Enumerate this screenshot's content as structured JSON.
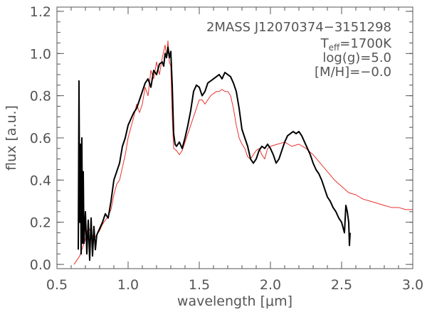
{
  "chart_data": {
    "type": "line",
    "title": "",
    "xlabel_main": "wavelength [",
    "xlabel_unit": "μm",
    "xlabel_end": "]",
    "ylabel": "flux [a.u.]",
    "xlim": [
      0.5,
      3.0
    ],
    "ylim": [
      -0.02,
      1.22
    ],
    "x_ticks": [
      0.5,
      1.0,
      1.5,
      2.0,
      2.5,
      3.0
    ],
    "x_tick_labels": [
      "0.5",
      "1.0",
      "1.5",
      "2.0",
      "2.5",
      "3.0"
    ],
    "y_ticks": [
      0.0,
      0.2,
      0.4,
      0.6,
      0.8,
      1.0,
      1.2
    ],
    "y_tick_labels": [
      "0.0",
      "0.2",
      "0.4",
      "0.6",
      "0.8",
      "1.0",
      "1.2"
    ],
    "grid": false,
    "annotations": {
      "object": "2MASS J12070374−3151298",
      "teff_prefix": "T",
      "teff_sub": "eff",
      "teff_value": "=1700K",
      "logg": "log(g)=5.0",
      "metallicity": "[M/H]=−0.0"
    },
    "series": [
      {
        "color": "#000000",
        "x": [
          0.65,
          0.655,
          0.66,
          0.665,
          0.67,
          0.675,
          0.68,
          0.685,
          0.69,
          0.7,
          0.71,
          0.72,
          0.73,
          0.74,
          0.75,
          0.76,
          0.77,
          0.78,
          0.8,
          0.82,
          0.84,
          0.86,
          0.88,
          0.9,
          0.92,
          0.94,
          0.96,
          0.98,
          1.0,
          1.02,
          1.04,
          1.06,
          1.08,
          1.1,
          1.12,
          1.14,
          1.16,
          1.18,
          1.2,
          1.22,
          1.24,
          1.25,
          1.26,
          1.27,
          1.28,
          1.29,
          1.3,
          1.31,
          1.32,
          1.33,
          1.34,
          1.36,
          1.38,
          1.4,
          1.42,
          1.44,
          1.46,
          1.48,
          1.5,
          1.52,
          1.54,
          1.56,
          1.58,
          1.6,
          1.62,
          1.64,
          1.66,
          1.68,
          1.7,
          1.72,
          1.74,
          1.76,
          1.78,
          1.8,
          1.82,
          1.84,
          1.86,
          1.88,
          1.9,
          1.92,
          1.94,
          1.96,
          1.98,
          2.0,
          2.02,
          2.04,
          2.06,
          2.08,
          2.1,
          2.12,
          2.14,
          2.16,
          2.18,
          2.2,
          2.22,
          2.24,
          2.26,
          2.28,
          2.3,
          2.32,
          2.34,
          2.36,
          2.38,
          2.4,
          2.42,
          2.44,
          2.46,
          2.48,
          2.5,
          2.52,
          2.53,
          2.54,
          2.55,
          2.555,
          2.56
        ],
        "y": [
          0.07,
          0.87,
          0.2,
          0.57,
          0.05,
          0.6,
          0.1,
          0.44,
          0.1,
          0.25,
          0.05,
          0.21,
          0.02,
          0.22,
          0.04,
          0.18,
          0.07,
          0.14,
          0.17,
          0.2,
          0.24,
          0.22,
          0.3,
          0.4,
          0.44,
          0.48,
          0.56,
          0.6,
          0.66,
          0.69,
          0.72,
          0.74,
          0.78,
          0.82,
          0.86,
          0.88,
          0.84,
          0.92,
          0.9,
          0.95,
          0.96,
          0.94,
          1.0,
          0.98,
          1.03,
          0.98,
          1.01,
          0.85,
          0.62,
          0.57,
          0.56,
          0.58,
          0.55,
          0.6,
          0.66,
          0.73,
          0.82,
          0.85,
          0.84,
          0.8,
          0.82,
          0.86,
          0.87,
          0.88,
          0.89,
          0.9,
          0.88,
          0.91,
          0.9,
          0.89,
          0.86,
          0.82,
          0.74,
          0.64,
          0.6,
          0.56,
          0.5,
          0.48,
          0.5,
          0.54,
          0.56,
          0.55,
          0.57,
          0.55,
          0.52,
          0.48,
          0.5,
          0.54,
          0.58,
          0.61,
          0.62,
          0.63,
          0.62,
          0.63,
          0.61,
          0.58,
          0.55,
          0.52,
          0.48,
          0.45,
          0.43,
          0.4,
          0.36,
          0.32,
          0.3,
          0.27,
          0.25,
          0.22,
          0.2,
          0.15,
          0.28,
          0.25,
          0.2,
          0.09,
          0.15
        ]
      },
      {
        "color": "#e8332d",
        "x": [
          0.62,
          0.66,
          0.7,
          0.72,
          0.74,
          0.76,
          0.78,
          0.8,
          0.82,
          0.84,
          0.86,
          0.88,
          0.9,
          0.92,
          0.94,
          0.96,
          0.98,
          1.0,
          1.02,
          1.04,
          1.06,
          1.08,
          1.1,
          1.12,
          1.14,
          1.16,
          1.18,
          1.2,
          1.22,
          1.24,
          1.26,
          1.27,
          1.28,
          1.29,
          1.3,
          1.31,
          1.32,
          1.34,
          1.36,
          1.38,
          1.4,
          1.42,
          1.44,
          1.46,
          1.48,
          1.5,
          1.52,
          1.54,
          1.56,
          1.58,
          1.6,
          1.62,
          1.64,
          1.66,
          1.68,
          1.7,
          1.72,
          1.74,
          1.76,
          1.78,
          1.8,
          1.82,
          1.84,
          1.86,
          1.88,
          1.9,
          1.92,
          1.94,
          1.96,
          1.98,
          2.0,
          2.05,
          2.1,
          2.15,
          2.2,
          2.25,
          2.3,
          2.35,
          2.4,
          2.45,
          2.5,
          2.55,
          2.6,
          2.65,
          2.7,
          2.75,
          2.8,
          2.85,
          2.9,
          2.95,
          3.0
        ],
        "y": [
          0.0,
          0.04,
          0.12,
          0.18,
          0.15,
          0.12,
          0.14,
          0.16,
          0.19,
          0.21,
          0.23,
          0.26,
          0.33,
          0.38,
          0.4,
          0.46,
          0.52,
          0.6,
          0.65,
          0.7,
          0.76,
          0.72,
          0.76,
          0.84,
          0.8,
          0.92,
          0.88,
          0.96,
          0.9,
          0.98,
          1.04,
          0.98,
          1.06,
          0.96,
          0.94,
          0.7,
          0.55,
          0.54,
          0.52,
          0.54,
          0.58,
          0.62,
          0.66,
          0.7,
          0.74,
          0.78,
          0.78,
          0.76,
          0.78,
          0.8,
          0.81,
          0.82,
          0.82,
          0.83,
          0.82,
          0.82,
          0.8,
          0.74,
          0.66,
          0.6,
          0.57,
          0.55,
          0.51,
          0.5,
          0.52,
          0.54,
          0.55,
          0.52,
          0.5,
          0.55,
          0.56,
          0.57,
          0.58,
          0.56,
          0.57,
          0.55,
          0.52,
          0.48,
          0.44,
          0.4,
          0.37,
          0.34,
          0.33,
          0.31,
          0.3,
          0.29,
          0.28,
          0.27,
          0.27,
          0.26,
          0.26
        ]
      }
    ]
  }
}
